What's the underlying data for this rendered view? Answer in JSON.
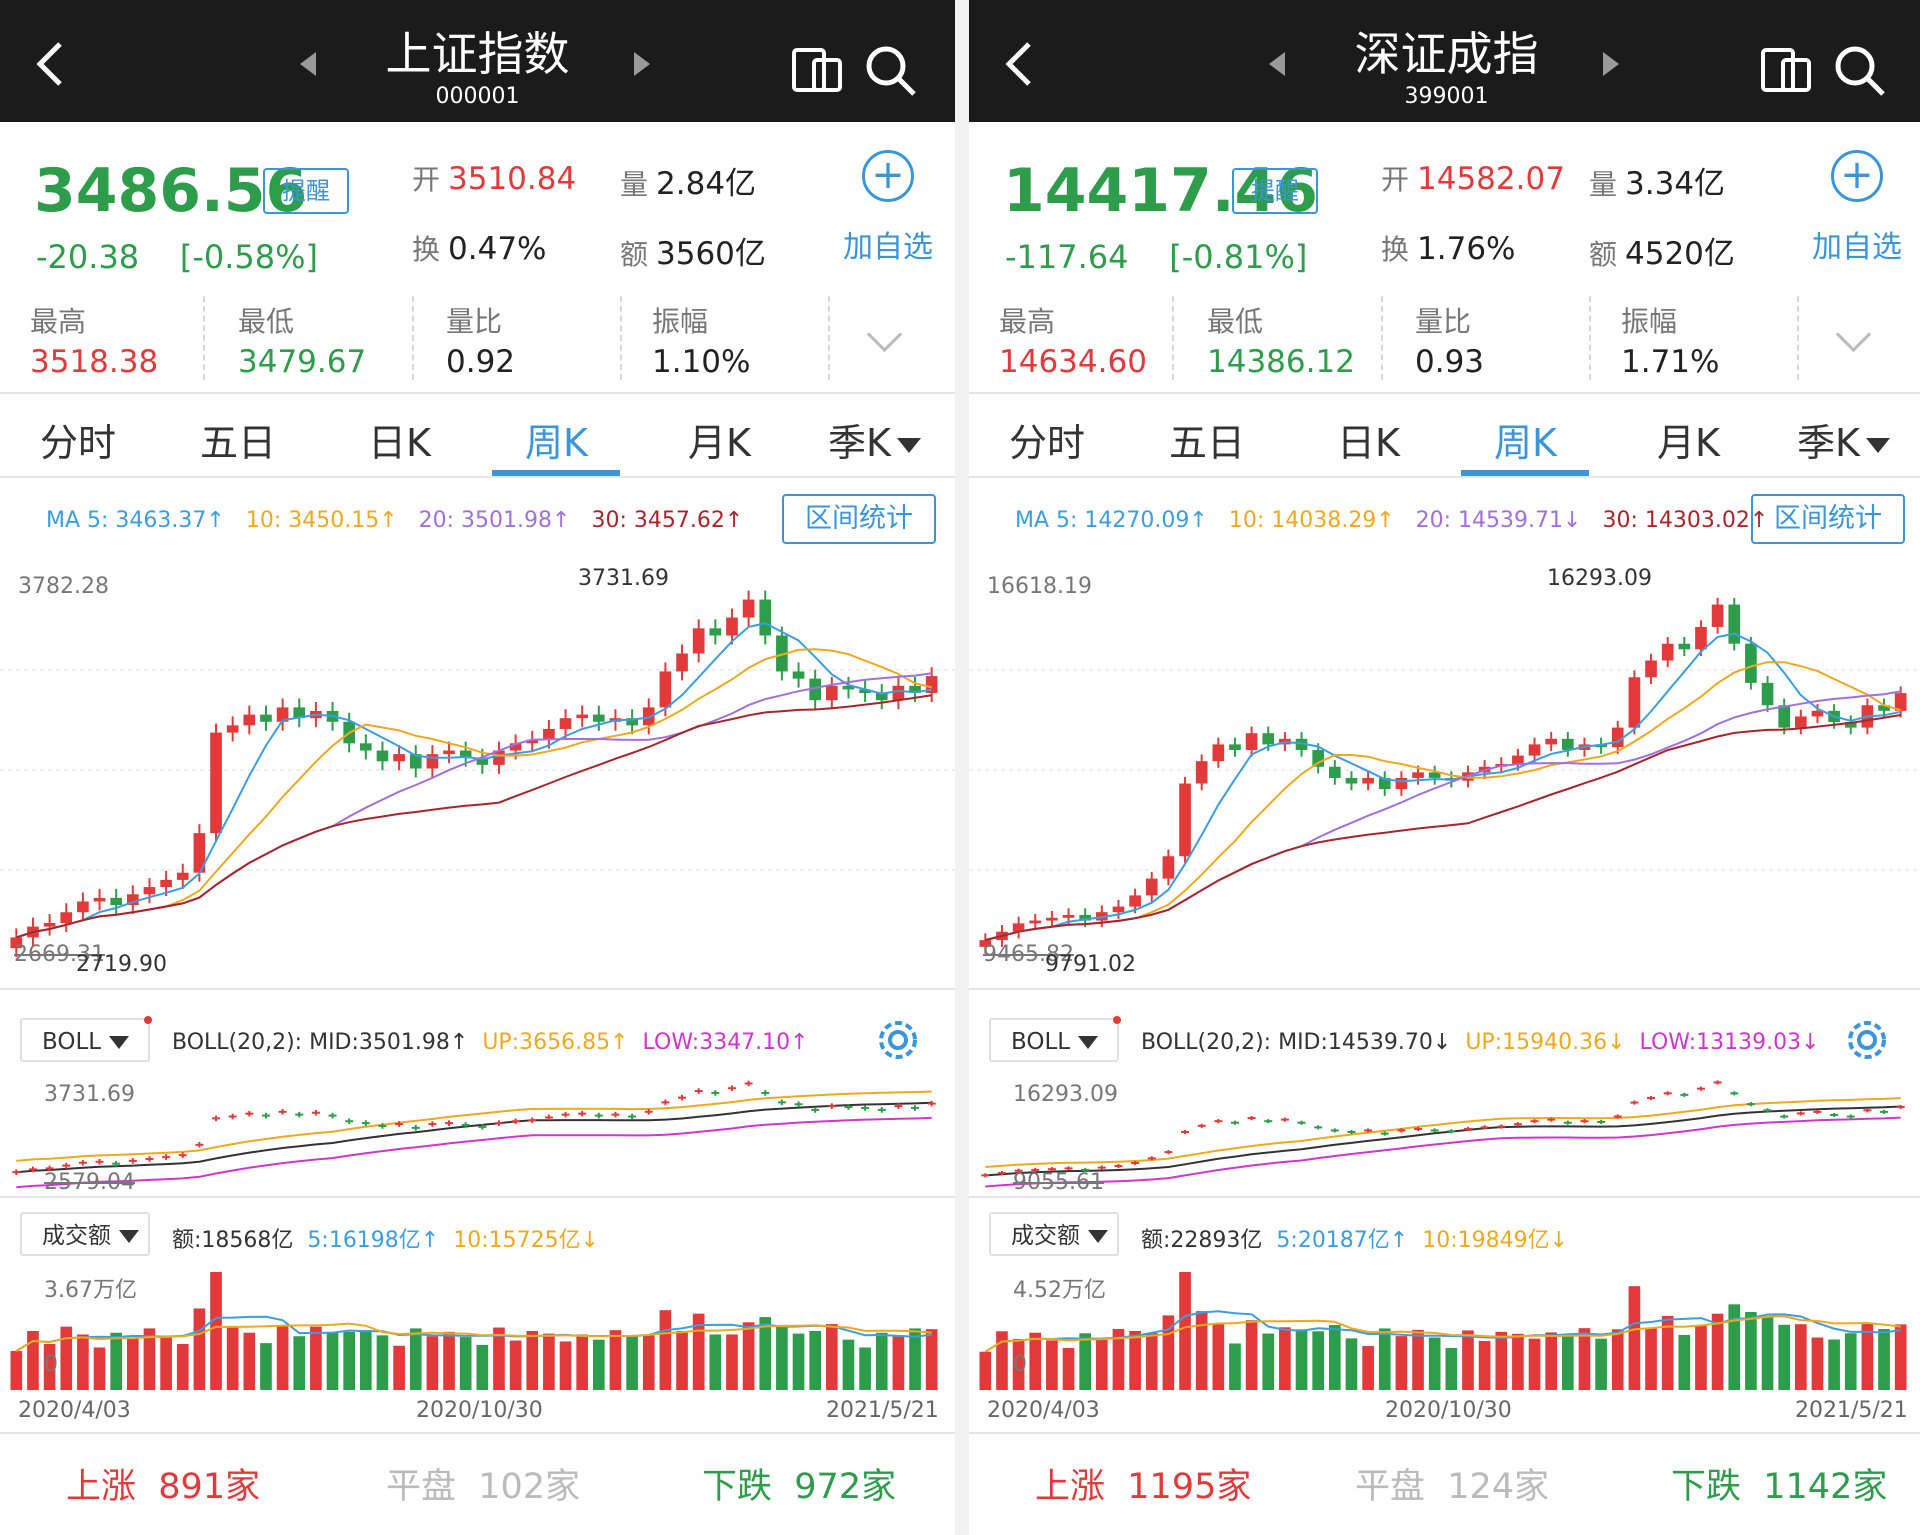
{
  "panels": [
    {
      "title": "上证指数",
      "code": "000001",
      "price": "3486.56",
      "change": "-20.38",
      "change_pct": "[-0.58%]",
      "remind_label": "提醒",
      "open_label": "开",
      "open": "3510.84",
      "volume_label": "量",
      "volume": "2.84亿",
      "turnover_label": "换",
      "turnover": "0.47%",
      "amount_label": "额",
      "amount": "3560亿",
      "add_watch_label": "加自选",
      "stats": [
        {
          "label": "最高",
          "value": "3518.38",
          "color": "red"
        },
        {
          "label": "最低",
          "value": "3479.67",
          "color": "green"
        },
        {
          "label": "量比",
          "value": "0.92",
          "color": "black"
        },
        {
          "label": "振幅",
          "value": "1.10%",
          "color": "black"
        }
      ],
      "tabs": [
        "分时",
        "五日",
        "日K",
        "周K",
        "月K",
        "季K"
      ],
      "active_tab": "周K",
      "ma": [
        "MA 5: 3463.37↑",
        "10: 3450.15↑",
        "20: 3501.98↑",
        "30: 3457.62↑"
      ],
      "range_stat_label": "区间统计",
      "chart_max_label": "3782.28",
      "chart_peak_label": "3731.69",
      "chart_low_label": "2669.31",
      "chart_low2_label": "2719.90",
      "boll_label": "BOLL",
      "boll_info": {
        "mid": "BOLL(20,2): MID:3501.98↑",
        "up": "UP:3656.85↑",
        "low": "LOW:3347.10↑"
      },
      "boll_max": "3731.69",
      "boll_min": "2579.04",
      "vol_label": "成交额",
      "vol_info": {
        "amt": "额:18568亿",
        "ma5": "5:16198亿↑",
        "ma10": "10:15725亿↓"
      },
      "vol_max": "3.67万亿",
      "vol_zero": "0",
      "dates": [
        "2020/4/03",
        "2020/10/30",
        "2021/5/21"
      ],
      "footer": {
        "up_label": "上涨",
        "up_count": "891家",
        "flat_label": "平盘",
        "flat_count": "102家",
        "down_label": "下跌",
        "down_count": "972家"
      }
    },
    {
      "title": "深证成指",
      "code": "399001",
      "price": "14417.46",
      "change": "-117.64",
      "change_pct": "[-0.81%]",
      "remind_label": "提醒",
      "open_label": "开",
      "open": "14582.07",
      "volume_label": "量",
      "volume": "3.34亿",
      "turnover_label": "换",
      "turnover": "1.76%",
      "amount_label": "额",
      "amount": "4520亿",
      "add_watch_label": "加自选",
      "stats": [
        {
          "label": "最高",
          "value": "14634.60",
          "color": "red"
        },
        {
          "label": "最低",
          "value": "14386.12",
          "color": "green"
        },
        {
          "label": "量比",
          "value": "0.93",
          "color": "black"
        },
        {
          "label": "振幅",
          "value": "1.71%",
          "color": "black"
        }
      ],
      "tabs": [
        "分时",
        "五日",
        "日K",
        "周K",
        "月K",
        "季K"
      ],
      "active_tab": "周K",
      "ma": [
        "MA 5: 14270.09↑",
        "10: 14038.29↑",
        "20: 14539.71↓",
        "30: 14303.02↑"
      ],
      "range_stat_label": "区间统计",
      "chart_max_label": "16618.19",
      "chart_peak_label": "16293.09",
      "chart_low_label": "9465.82",
      "chart_low2_label": "9791.02",
      "boll_label": "BOLL",
      "boll_info": {
        "mid": "BOLL(20,2): MID:14539.70↓",
        "up": "UP:15940.36↓",
        "low": "LOW:13139.03↓"
      },
      "boll_max": "16293.09",
      "boll_min": "9055.61",
      "vol_label": "成交额",
      "vol_info": {
        "amt": "额:22893亿",
        "ma5": "5:20187亿↑",
        "ma10": "10:19849亿↓"
      },
      "vol_max": "4.52万亿",
      "vol_zero": "0",
      "dates": [
        "2020/4/03",
        "2020/10/30",
        "2021/5/21"
      ],
      "footer": {
        "up_label": "上涨",
        "up_count": "1195家",
        "flat_label": "平盘",
        "flat_count": "124家",
        "down_label": "下跌",
        "down_count": "1142家"
      }
    }
  ],
  "colors": {
    "red": "#e23a3a",
    "green": "#2e9d4b",
    "blue": "#3b95d9",
    "header": "#1b1b1b",
    "ma5": "#3b9ee0",
    "ma10": "#f0a81e",
    "ma20": "#a070e0",
    "ma30": "#a8252b",
    "boll_low": "#d035d0"
  },
  "chart_data": [
    {
      "type": "candlestick",
      "title": "上证指数 周K",
      "x_start": "2020/4/03",
      "x_end": "2021/5/21",
      "ylim": [
        2669.31,
        3782.28
      ],
      "close": [
        2760,
        2790,
        2800,
        2830,
        2860,
        2870,
        2850,
        2880,
        2900,
        2920,
        2940,
        3050,
        3330,
        3350,
        3380,
        3360,
        3400,
        3370,
        3390,
        3360,
        3300,
        3280,
        3250,
        3270,
        3230,
        3270,
        3280,
        3260,
        3240,
        3280,
        3300,
        3310,
        3340,
        3370,
        3380,
        3360,
        3370,
        3350,
        3400,
        3500,
        3550,
        3620,
        3600,
        3650,
        3700,
        3600,
        3500,
        3480,
        3420,
        3460,
        3450,
        3440,
        3420,
        3460,
        3440,
        3487
      ]
    },
    {
      "type": "candlestick",
      "title": "深证成指 周K",
      "x_start": "2020/4/03",
      "x_end": "2021/5/21",
      "ylim": [
        9465.82,
        16618.19
      ],
      "close": [
        10000,
        10150,
        10300,
        10350,
        10400,
        10450,
        10350,
        10500,
        10600,
        10800,
        11100,
        11500,
        12800,
        13200,
        13500,
        13400,
        13700,
        13500,
        13600,
        13400,
        13100,
        12900,
        12800,
        12900,
        12700,
        12900,
        13000,
        12900,
        12850,
        13000,
        13100,
        13150,
        13300,
        13500,
        13600,
        13400,
        13500,
        13450,
        13800,
        14700,
        15000,
        15300,
        15200,
        15600,
        16000,
        15300,
        14600,
        14200,
        13800,
        14000,
        14100,
        13900,
        13800,
        14200,
        14100,
        14417
      ]
    }
  ]
}
